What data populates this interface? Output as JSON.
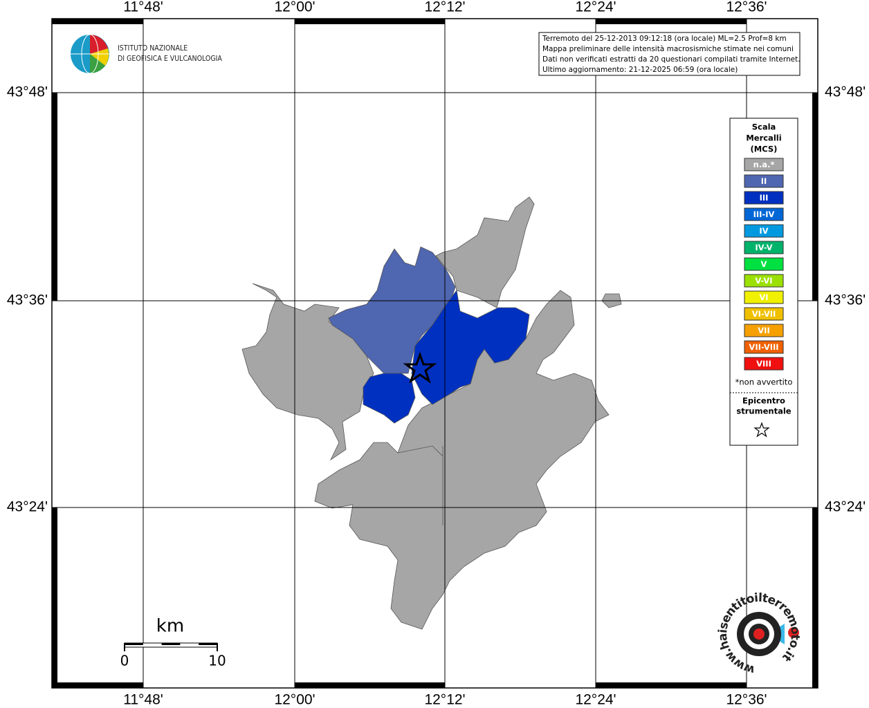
{
  "header": {
    "logo_lines": [
      "ISTITUTO NAZIONALE",
      "DI GEOFISICA E VULCANOLOGIA"
    ]
  },
  "info_box": {
    "lines": [
      "Terremoto del 25-12-2013 09:12:18 (ora locale) ML=2.5 Prof=8 km",
      "Mappa preliminare delle intensità macrosismiche stimate nei comuni",
      "Dati non verificati estratti da 20 questionari compilati tramite Internet.",
      "Ultimo aggiornamento: 21-12-2025 06:59 (ora locale)"
    ]
  },
  "axes": {
    "longitude_labels": [
      "11°48'",
      "12°00'",
      "12°12'",
      "12°24'",
      "12°36'"
    ],
    "latitude_labels": [
      "43°48'",
      "43°36'",
      "43°24'"
    ]
  },
  "legend": {
    "title_lines": [
      "Scala",
      "Mercalli",
      "(MCS)"
    ],
    "items": [
      {
        "label": "n.a.*",
        "color": "#a6a6a6"
      },
      {
        "label": "II",
        "color": "#4f66b0"
      },
      {
        "label": "III",
        "color": "#0030c0"
      },
      {
        "label": "III-IV",
        "color": "#0066d6"
      },
      {
        "label": "IV",
        "color": "#0099e0"
      },
      {
        "label": "IV-V",
        "color": "#00b36b"
      },
      {
        "label": "V",
        "color": "#00e040"
      },
      {
        "label": "V-VI",
        "color": "#9be000"
      },
      {
        "label": "VI",
        "color": "#f0f000"
      },
      {
        "label": "VI-VII",
        "color": "#f0c000"
      },
      {
        "label": "VII",
        "color": "#f5a000"
      },
      {
        "label": "VII-VIII",
        "color": "#f06000"
      },
      {
        "label": "VIII",
        "color": "#f01010"
      }
    ],
    "note": "*non avvertito",
    "epicenter_lines": [
      "Epicentro",
      "strumentale"
    ]
  },
  "scale_bar": {
    "unit": "km",
    "labels": [
      "0",
      "10"
    ]
  },
  "footer_logo": {
    "text": "www.haisentitoilterremoto.it"
  }
}
